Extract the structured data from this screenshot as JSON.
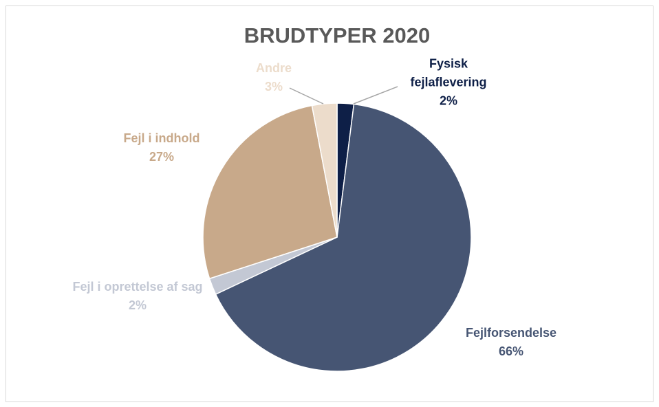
{
  "chart_data": {
    "type": "pie",
    "title": "BRUDTYPER 2020",
    "categories": [
      "Fysisk fejlaflevering",
      "Fejlforsendelse",
      "Fejl i oprettelse af sag",
      "Fejl i indhold",
      "Andre"
    ],
    "values": [
      2,
      66,
      2,
      27,
      3
    ],
    "value_labels": [
      "2%",
      "66%",
      "2%",
      "27%",
      "3%"
    ],
    "colors": [
      "#0e1f47",
      "#465573",
      "#c3c8d4",
      "#c8a98a",
      "#ecdccb"
    ]
  }
}
